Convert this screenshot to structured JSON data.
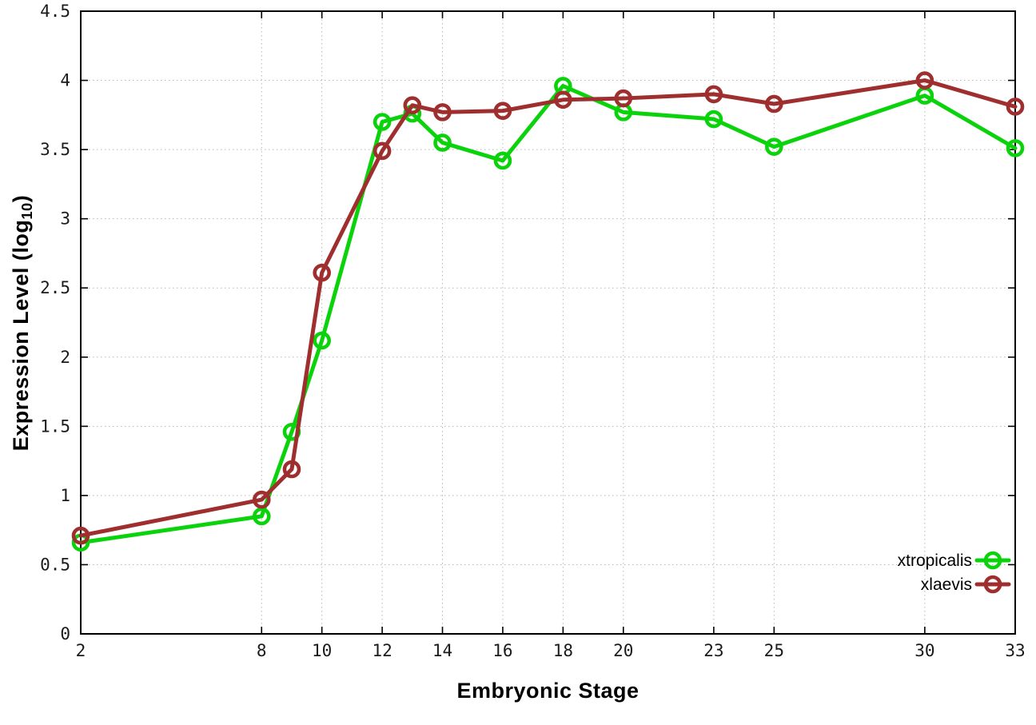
{
  "chart_data": {
    "type": "line",
    "title": "",
    "xlabel": "Embryonic Stage",
    "ylabel": {
      "pre": "Expression Level (log",
      "sub": "10",
      "post": ")"
    },
    "xlim": [
      2,
      33
    ],
    "ylim": [
      0,
      4.5
    ],
    "grid": true,
    "legend_position": "bottom-right-inside",
    "x_ticks": [
      {
        "v": 2,
        "label": "2"
      },
      {
        "v": 8,
        "label": "8"
      },
      {
        "v": 10,
        "label": "10"
      },
      {
        "v": 12,
        "label": "12"
      },
      {
        "v": 14,
        "label": "14"
      },
      {
        "v": 16,
        "label": "16"
      },
      {
        "v": 18,
        "label": "18"
      },
      {
        "v": 20,
        "label": "20"
      },
      {
        "v": 23,
        "label": "23"
      },
      {
        "v": 25,
        "label": "25"
      },
      {
        "v": 30,
        "label": "30"
      },
      {
        "v": 33,
        "label": "33"
      }
    ],
    "y_ticks": [
      {
        "v": 0,
        "label": "0"
      },
      {
        "v": 0.5,
        "label": "0.5"
      },
      {
        "v": 1,
        "label": "1"
      },
      {
        "v": 1.5,
        "label": "1.5"
      },
      {
        "v": 2,
        "label": "2"
      },
      {
        "v": 2.5,
        "label": "2.5"
      },
      {
        "v": 3,
        "label": "3"
      },
      {
        "v": 3.5,
        "label": "3.5"
      },
      {
        "v": 4,
        "label": "4"
      },
      {
        "v": 4.5,
        "label": "4.5"
      }
    ],
    "x": [
      2,
      8,
      9,
      10,
      12,
      13,
      14,
      16,
      18,
      20,
      23,
      25,
      30,
      33
    ],
    "series": [
      {
        "name": "xtropicalis",
        "color": "#0bd30b",
        "marker": "open-circle",
        "values": [
          0.66,
          0.85,
          1.46,
          2.12,
          3.7,
          3.76,
          3.55,
          3.42,
          3.96,
          3.77,
          3.72,
          3.52,
          3.89,
          3.51
        ]
      },
      {
        "name": "xlaevis",
        "color": "#9f2f2f",
        "marker": "open-circle",
        "values": [
          0.71,
          0.97,
          1.19,
          2.61,
          3.49,
          3.82,
          3.77,
          3.78,
          3.86,
          3.87,
          3.9,
          3.83,
          4.0,
          3.81
        ]
      }
    ],
    "colors": {
      "grid": "#b8b8b8",
      "axis": "#000000",
      "tick_text": "#1a1a1a"
    }
  }
}
